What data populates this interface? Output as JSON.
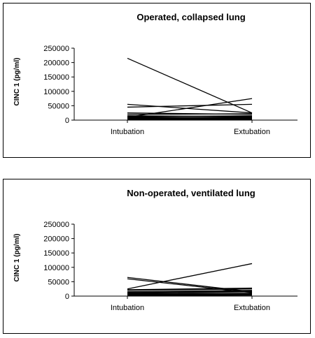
{
  "chart_data": [
    {
      "type": "line",
      "title": "Operated, collapsed lung",
      "xlabel": "",
      "ylabel": "CINC 1 (pg/ml)",
      "categories": [
        "Intubation",
        "Extubation"
      ],
      "yticks": [
        "250000",
        "200000",
        "150000",
        "100000",
        "50000",
        "0"
      ],
      "ylim": [
        0,
        250000
      ],
      "grid": false,
      "series": [
        {
          "values": [
            215000,
            25000
          ]
        },
        {
          "values": [
            55000,
            25000
          ]
        },
        {
          "values": [
            45000,
            55000
          ]
        },
        {
          "values": [
            10000,
            75000
          ]
        },
        {
          "values": [
            25000,
            20000
          ]
        },
        {
          "values": [
            20000,
            22000
          ]
        },
        {
          "values": [
            15000,
            12000
          ]
        },
        {
          "values": [
            12000,
            15000
          ]
        },
        {
          "values": [
            10000,
            8000
          ]
        },
        {
          "values": [
            8000,
            10000
          ]
        },
        {
          "values": [
            6000,
            5000
          ]
        },
        {
          "values": [
            5000,
            6000
          ]
        },
        {
          "values": [
            4000,
            3000
          ]
        },
        {
          "values": [
            3000,
            4000
          ]
        },
        {
          "values": [
            2000,
            2000
          ]
        }
      ]
    },
    {
      "type": "line",
      "title": "Non-operated, ventilated lung",
      "xlabel": "",
      "ylabel": "CINC 1 (pg/ml)",
      "categories": [
        "Intubation",
        "Extubation"
      ],
      "yticks": [
        "250000",
        "200000",
        "150000",
        "100000",
        "50000",
        "0"
      ],
      "ylim": [
        0,
        250000
      ],
      "grid": false,
      "series": [
        {
          "values": [
            65000,
            15000
          ]
        },
        {
          "values": [
            60000,
            12000
          ]
        },
        {
          "values": [
            25000,
            113000
          ]
        },
        {
          "values": [
            22000,
            28000
          ]
        },
        {
          "values": [
            20000,
            25000
          ]
        },
        {
          "values": [
            15000,
            20000
          ]
        },
        {
          "values": [
            12000,
            18000
          ]
        },
        {
          "values": [
            10000,
            15000
          ]
        },
        {
          "values": [
            8000,
            10000
          ]
        },
        {
          "values": [
            7000,
            8000
          ]
        },
        {
          "values": [
            6000,
            7000
          ]
        },
        {
          "values": [
            5000,
            5000
          ]
        },
        {
          "values": [
            4000,
            6000
          ]
        },
        {
          "values": [
            3000,
            4000
          ]
        },
        {
          "values": [
            2000,
            3000
          ]
        }
      ]
    }
  ]
}
